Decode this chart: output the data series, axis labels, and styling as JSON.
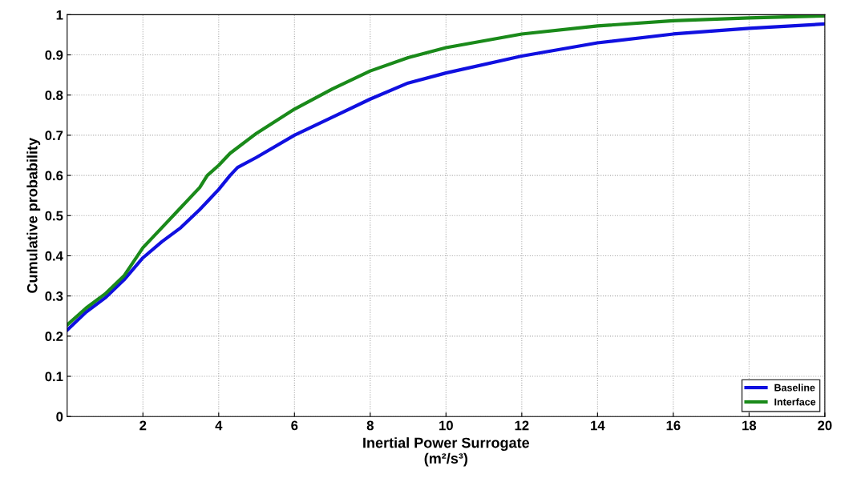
{
  "chart_data": {
    "type": "line",
    "xlabel": "Inertial Power Surrogate\n(m²/s³)",
    "ylabel": "Cumulative probability",
    "xlim": [
      0,
      20
    ],
    "xticks": [
      2,
      4,
      6,
      8,
      10,
      12,
      14,
      16,
      18,
      20
    ],
    "ylim": [
      0,
      1
    ],
    "yticks": [
      0,
      0.1,
      0.2,
      0.3,
      0.4,
      0.5,
      0.6,
      0.7,
      0.8,
      0.9,
      1
    ],
    "grid": true,
    "legend": "bottom right",
    "marker": "none",
    "line_style": "solid",
    "series": [
      {
        "name": "Baseline",
        "color": "#1010e0",
        "x": [
          0,
          0.5,
          1,
          1.5,
          2,
          2.5,
          3,
          3.5,
          3.7,
          4,
          4.3,
          4.5,
          5,
          6,
          7,
          8,
          9,
          10,
          12,
          14,
          16,
          18,
          20
        ],
        "values": [
          0.215,
          0.26,
          0.295,
          0.34,
          0.395,
          0.435,
          0.47,
          0.515,
          0.535,
          0.565,
          0.6,
          0.62,
          0.645,
          0.7,
          0.745,
          0.79,
          0.83,
          0.855,
          0.897,
          0.93,
          0.952,
          0.966,
          0.977
        ]
      },
      {
        "name": "Interface",
        "color": "#1a8a1a",
        "x": [
          0,
          0.5,
          1,
          1.5,
          2,
          2.5,
          3,
          3.5,
          3.7,
          4,
          4.3,
          5,
          6,
          7,
          8,
          9,
          10,
          12,
          14,
          16,
          18,
          20
        ],
        "values": [
          0.228,
          0.27,
          0.305,
          0.35,
          0.42,
          0.47,
          0.52,
          0.57,
          0.6,
          0.625,
          0.655,
          0.705,
          0.765,
          0.815,
          0.86,
          0.893,
          0.918,
          0.952,
          0.972,
          0.985,
          0.992,
          0.997
        ]
      }
    ]
  }
}
